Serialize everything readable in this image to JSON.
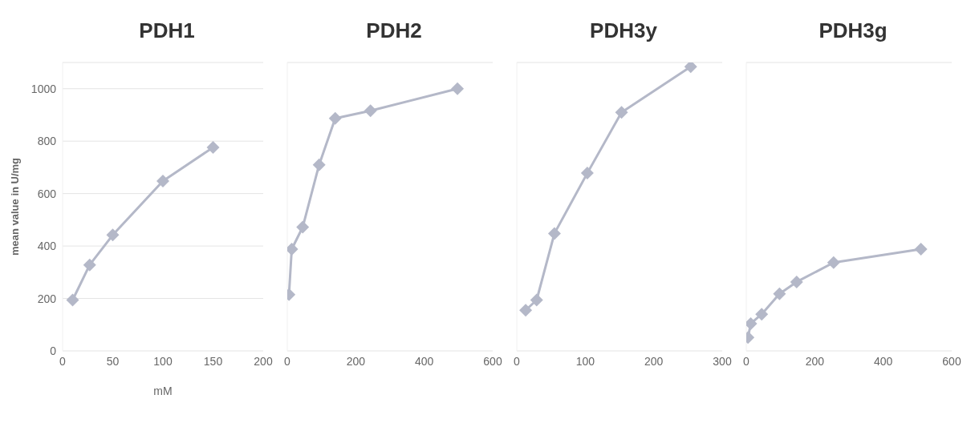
{
  "chart_data": [
    {
      "type": "line",
      "title": "PDH1",
      "xlabel": "mM",
      "ylabel": "mean value in U/mg",
      "x": [
        10,
        27,
        50,
        100,
        150
      ],
      "series": [
        {
          "color": "#b4b8c8",
          "values": [
            194,
            328,
            442,
            648,
            776
          ]
        }
      ],
      "xlim": [
        0,
        200
      ],
      "xticks": [
        0,
        50,
        100,
        150,
        200
      ],
      "ylim": [
        0,
        1100
      ],
      "yticks": [
        0,
        200,
        400,
        600,
        800,
        1000
      ],
      "grid": "y",
      "marker": "diamond",
      "legend": false
    },
    {
      "type": "line",
      "title": "PDH2",
      "x": [
        5,
        13,
        45,
        93,
        140,
        243,
        497
      ],
      "series": [
        {
          "color": "#b4b8c8",
          "values": [
            215,
            388,
            472,
            710,
            887,
            916,
            1000
          ]
        }
      ],
      "xlim": [
        0,
        600
      ],
      "xticks": [
        0,
        200,
        400,
        600
      ],
      "ylim": [
        0,
        1100
      ],
      "yticks": [
        0,
        200,
        400,
        600,
        800,
        1000
      ],
      "tick_labels": "x",
      "grid": "y",
      "marker": "diamond",
      "legend": false
    },
    {
      "type": "line",
      "title": "PDH3y",
      "x": [
        13,
        29,
        55,
        103,
        153,
        254
      ],
      "series": [
        {
          "color": "#b4b8c8",
          "values": [
            155,
            194,
            448,
            678,
            910,
            1084
          ]
        }
      ],
      "xlim": [
        0,
        300
      ],
      "xticks": [
        0,
        100,
        200,
        300
      ],
      "ylim": [
        0,
        1100
      ],
      "yticks": [
        0,
        200,
        400,
        600,
        800,
        1000
      ],
      "tick_labels": "x",
      "grid": "y",
      "marker": "diamond",
      "legend": false
    },
    {
      "type": "line",
      "title": "PDH3g",
      "x": [
        5,
        13,
        45,
        97,
        147,
        255,
        510
      ],
      "series": [
        {
          "color": "#b4b8c8",
          "values": [
            51,
            104,
            140,
            218,
            263,
            337,
            388
          ]
        }
      ],
      "xlim": [
        0,
        600
      ],
      "xticks": [
        0,
        200,
        400,
        600
      ],
      "ylim": [
        0,
        1100
      ],
      "yticks": [
        0,
        200,
        400,
        600,
        800,
        1000
      ],
      "tick_labels": "x",
      "grid": "y",
      "marker": "diamond",
      "legend": false
    }
  ]
}
